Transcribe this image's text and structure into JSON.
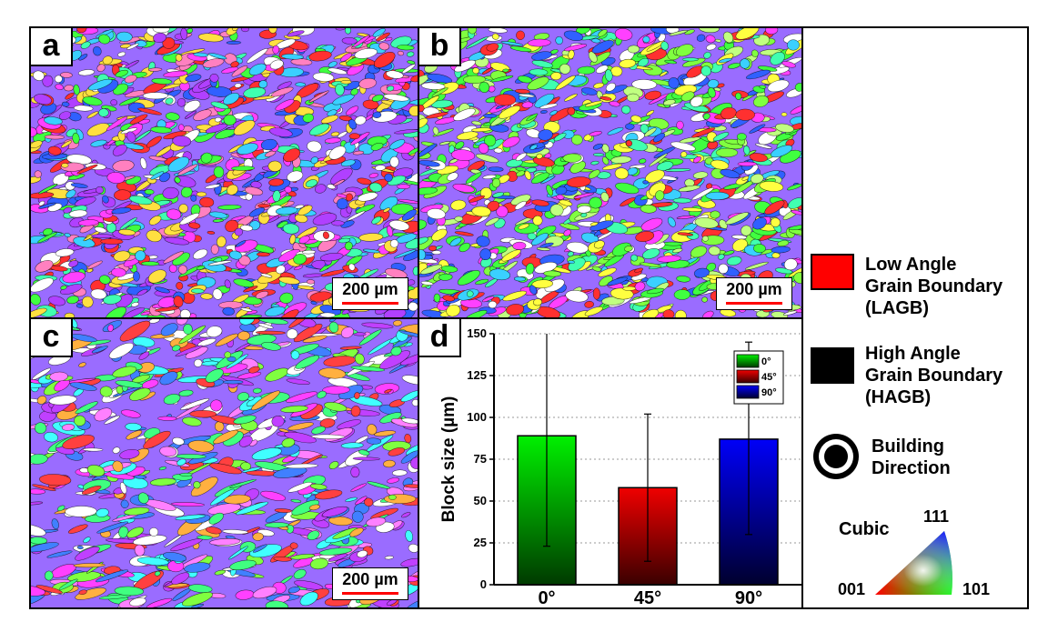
{
  "panels": {
    "a": {
      "tag": "a",
      "scalebar": "200 µm"
    },
    "b": {
      "tag": "b",
      "scalebar": "200 µm"
    },
    "c": {
      "tag": "c",
      "scalebar": "200 µm"
    },
    "d": {
      "tag": "d"
    }
  },
  "chart_data": {
    "type": "bar",
    "categories": [
      "0°",
      "45°",
      "90°"
    ],
    "values": [
      89,
      58,
      87
    ],
    "error_low": [
      23,
      14,
      30
    ],
    "error_high": [
      150,
      102,
      145
    ],
    "ylabel": "Block size (µm)",
    "xlabel": "",
    "ylim": [
      0,
      150
    ],
    "yticks": [
      0,
      25,
      50,
      75,
      100,
      125,
      150
    ],
    "legend": [
      "0°",
      "45°",
      "90°"
    ],
    "legend_position": "top-right",
    "grid": "horizontal dotted",
    "colors": [
      "#00e000",
      "#e00000",
      "#0000e8"
    ]
  },
  "legend": {
    "lagb": {
      "text_line1": "Low Angle",
      "text_line2": "Grain Boundary",
      "text_line3": "(LAGB)",
      "color": "#ff0000"
    },
    "hagb": {
      "text_line1": "High Angle",
      "text_line2": "Grain Boundary",
      "text_line3": "(HAGB)",
      "color": "#000000"
    },
    "building": {
      "line1": "Building",
      "line2": "Direction"
    },
    "ipf": {
      "title": "Cubic",
      "corner_001": "001",
      "corner_101": "101",
      "corner_111": "111"
    }
  },
  "colors": {
    "scalebar": "#ff0000"
  }
}
